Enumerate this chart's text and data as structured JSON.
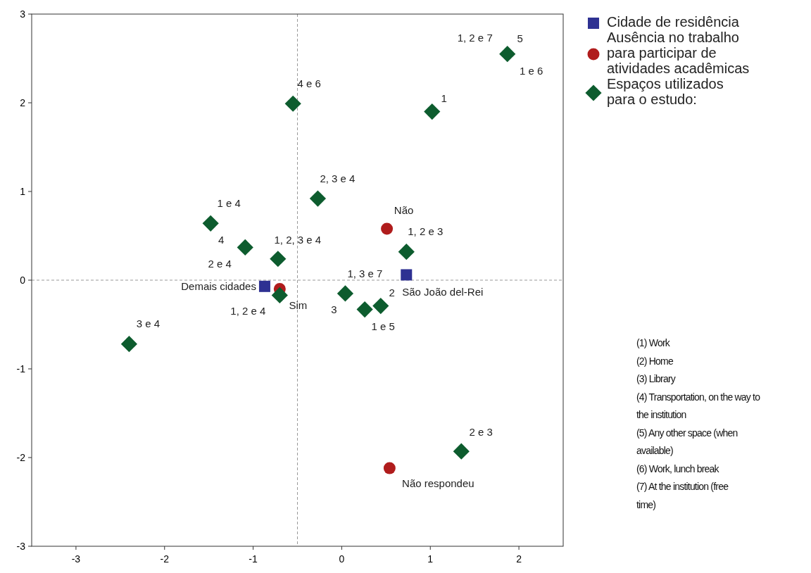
{
  "chart_data": {
    "type": "scatter",
    "xlim": [
      -3.5,
      2.5
    ],
    "ylim": [
      -3,
      3
    ],
    "xticks": [
      -3,
      -2,
      -1,
      0,
      1,
      2
    ],
    "yticks": [
      -3,
      -2,
      -1,
      0,
      1,
      2,
      3
    ],
    "grid": false,
    "legend": "top right",
    "series": [
      {
        "name": "Cidade de residência",
        "color": "#2e3192",
        "marker": "square",
        "x": [
          -0.87,
          0.73
        ],
        "values": [
          -0.07,
          0.06
        ]
      },
      {
        "name": "Ausência no trabalho para participar de atividades acadêmicas",
        "color": "#b01c1c",
        "marker": "circle",
        "x": [
          -0.7,
          0.51,
          0.54
        ],
        "values": [
          -0.1,
          0.58,
          -2.12
        ]
      },
      {
        "name": "Espaços utilizados para o estudo:",
        "color": "#0d5c2e",
        "marker": "diamond",
        "x": [
          1.87,
          1.02,
          -0.55,
          -0.27,
          -1.48,
          -1.09,
          -0.72,
          -0.7,
          0.73,
          0.04,
          0.26,
          0.44,
          -2.4,
          1.35
        ],
        "values": [
          2.55,
          1.9,
          1.99,
          0.92,
          0.64,
          0.37,
          0.24,
          -0.17,
          0.32,
          -0.15,
          -0.33,
          -0.29,
          -0.72,
          -1.93
        ]
      }
    ],
    "ref_lines": [
      {
        "axis": "x",
        "value": -0.5,
        "line_style": "dashed",
        "color": "#999999"
      },
      {
        "axis": "y",
        "value": 0,
        "line_style": "dashed",
        "color": "#999999"
      }
    ],
    "annotations": [
      {
        "text": "1, 2 e 7",
        "x": 1.87,
        "y": 2.55
      },
      {
        "text": "5",
        "x": 1.87,
        "y": 2.55
      },
      {
        "text": "1 e 6",
        "x": 1.87,
        "y": 2.55
      },
      {
        "text": "1",
        "x": 1.02,
        "y": 1.9
      },
      {
        "text": "4 e 6",
        "x": -0.55,
        "y": 1.99
      },
      {
        "text": "2, 3 e 4",
        "x": -0.27,
        "y": 0.92
      },
      {
        "text": "1 e 4",
        "x": -1.48,
        "y": 0.64
      },
      {
        "text": "4",
        "x": -1.09,
        "y": 0.37
      },
      {
        "text": "2 e 4",
        "x": -1.09,
        "y": 0.37
      },
      {
        "text": "1, 2, 3 e 4",
        "x": -0.72,
        "y": 0.24
      },
      {
        "text": "1, 2 e 4",
        "x": -0.7,
        "y": -0.17
      },
      {
        "text": "Sim",
        "x": -0.7,
        "y": -0.1
      },
      {
        "text": "Não",
        "x": 0.51,
        "y": 0.58
      },
      {
        "text": "1, 2 e 3",
        "x": 0.73,
        "y": 0.32
      },
      {
        "text": "Demais cidades",
        "x": -0.87,
        "y": -0.07
      },
      {
        "text": "1, 3 e 7",
        "x": 0.04,
        "y": -0.15
      },
      {
        "text": "3",
        "x": 0.04,
        "y": -0.15
      },
      {
        "text": "2",
        "x": 0.44,
        "y": -0.29
      },
      {
        "text": "São João del-Rei",
        "x": 0.73,
        "y": 0.06
      },
      {
        "text": "1 e 5",
        "x": 0.26,
        "y": -0.33
      },
      {
        "text": "3 e 4",
        "x": -2.4,
        "y": -0.72
      },
      {
        "text": "2 e 3",
        "x": 1.35,
        "y": -1.93
      },
      {
        "text": "Não respondeu",
        "x": 0.54,
        "y": -2.12
      },
      "(1) Work",
      "(2) Home",
      "(3) Library",
      "(4) Transportation, on the way to the institution",
      "(5) Any other space (when available)",
      "(6) Work, lunch break",
      "(7) At the institution (free time)"
    ]
  }
}
